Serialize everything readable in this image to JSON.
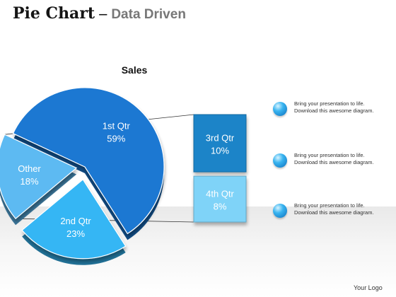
{
  "header": {
    "title_main": "Pie Chart",
    "title_sep": "–",
    "title_sub": "Data Driven"
  },
  "chart_data": {
    "type": "pie",
    "title": "Sales",
    "slices": [
      {
        "label": "1st Qtr",
        "value": 59,
        "display": "59%",
        "color": "#1a78d2"
      },
      {
        "label": "2nd Qtr",
        "value": 23,
        "display": "23%",
        "color": "#35b6f4"
      },
      {
        "label": "Other",
        "value": 18,
        "display": "18%",
        "color": "#5dbaf2"
      }
    ],
    "breakdown": {
      "of": "Other",
      "type": "stacked-bar",
      "segments": [
        {
          "label": "3rd Qtr",
          "value": 10,
          "display": "10%",
          "color": "#1a84c8"
        },
        {
          "label": "4th Qtr",
          "value": 8,
          "display": "8%",
          "color": "#7fd3f8"
        }
      ]
    }
  },
  "legend": {
    "items": [
      {
        "line1": "Bring your presentation to life.",
        "line2": "Download this awesome diagram."
      },
      {
        "line1": "Bring your presentation to life.",
        "line2": "Download this awesome diagram."
      },
      {
        "line1": "Bring your presentation to life.",
        "line2": "Download this awesome diagram."
      }
    ]
  },
  "footer": {
    "logo_text": "Your Logo"
  }
}
